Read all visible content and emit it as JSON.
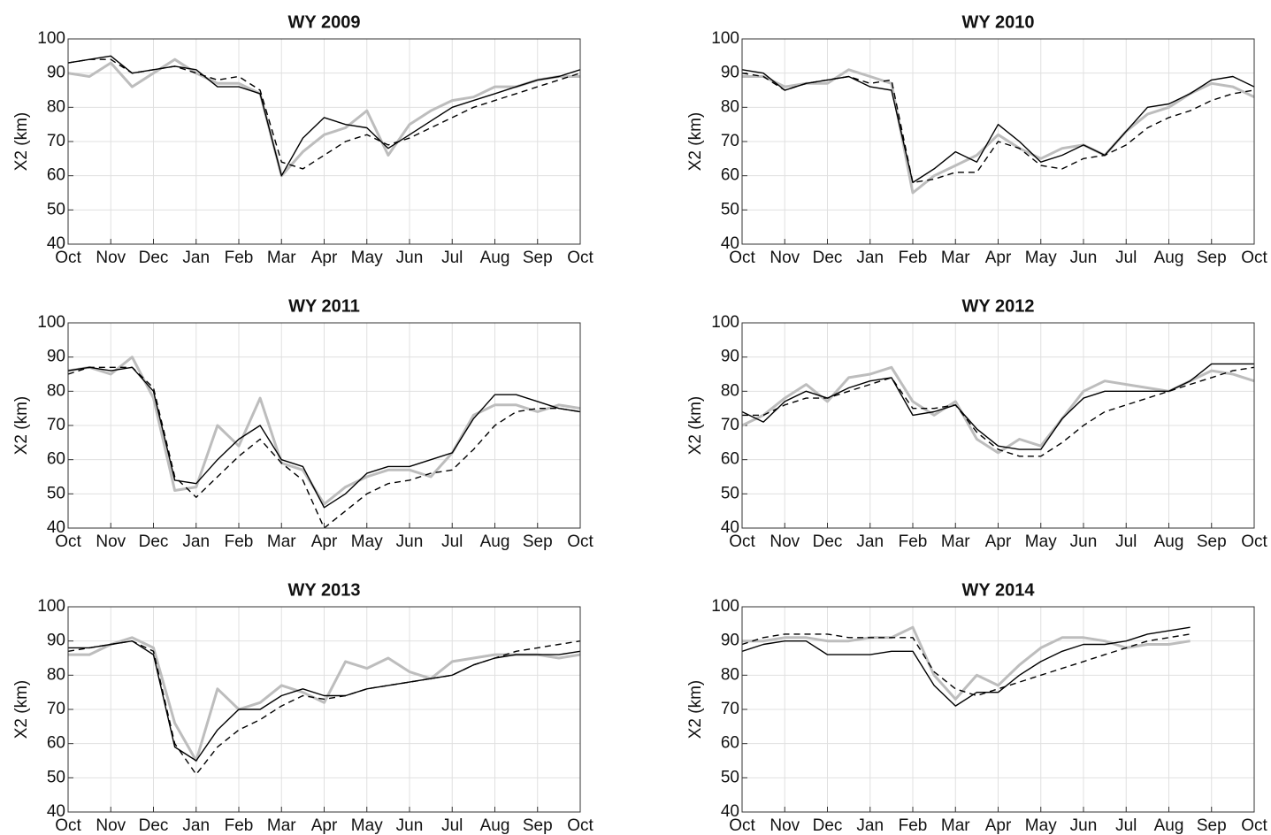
{
  "chart_data": [
    {
      "type": "line",
      "title": "WY 2009",
      "ylabel": "X2 (km)",
      "x": [
        0,
        0.5,
        1,
        1.5,
        2,
        2.5,
        3,
        3.5,
        4,
        4.5,
        5,
        5.5,
        6,
        6.5,
        7,
        7.5,
        8,
        8.5,
        9,
        9.5,
        10,
        10.5,
        11,
        11.5,
        12
      ],
      "xlim": [
        0,
        12
      ],
      "xticks": [
        {
          "value": 0,
          "label": "Oct"
        },
        {
          "value": 1,
          "label": "Nov"
        },
        {
          "value": 2,
          "label": "Dec"
        },
        {
          "value": 3,
          "label": "Jan"
        },
        {
          "value": 4,
          "label": "Feb"
        },
        {
          "value": 5,
          "label": "Mar"
        },
        {
          "value": 6,
          "label": "Apr"
        },
        {
          "value": 7,
          "label": "May"
        },
        {
          "value": 8,
          "label": "Jun"
        },
        {
          "value": 9,
          "label": "Jul"
        },
        {
          "value": 10,
          "label": "Aug"
        },
        {
          "value": 11,
          "label": "Sep"
        },
        {
          "value": 12,
          "label": "Oct"
        }
      ],
      "ylim": [
        40,
        100
      ],
      "yticks": [
        40,
        50,
        60,
        70,
        80,
        90,
        100
      ],
      "grid": true,
      "series": [
        {
          "color": "#bdbdbd",
          "line_style": "solid",
          "values": [
            90,
            89,
            93,
            86,
            90,
            94,
            90,
            87,
            87,
            84,
            60,
            67,
            72,
            74,
            79,
            66,
            75,
            79,
            82,
            83,
            86,
            86,
            88,
            89,
            89
          ]
        },
        {
          "color": "#000000",
          "line_style": "solid",
          "values": [
            93,
            94,
            95,
            90,
            91,
            92,
            91,
            86,
            86,
            84,
            60,
            71,
            77,
            75,
            74,
            68,
            72,
            76,
            80,
            82,
            84,
            86,
            88,
            89,
            91
          ]
        },
        {
          "color": "#000000",
          "line_style": "dashed",
          "values": [
            93,
            94,
            94,
            90,
            91,
            92,
            90,
            88,
            89,
            85,
            64,
            62,
            66,
            70,
            72,
            69,
            71,
            74,
            77,
            80,
            82,
            84,
            86,
            88,
            90
          ]
        }
      ]
    },
    {
      "type": "line",
      "title": "WY 2010",
      "ylabel": "X2 (km)",
      "x": [
        0,
        0.5,
        1,
        1.5,
        2,
        2.5,
        3,
        3.5,
        4,
        4.5,
        5,
        5.5,
        6,
        6.5,
        7,
        7.5,
        8,
        8.5,
        9,
        9.5,
        10,
        10.5,
        11,
        11.5,
        12
      ],
      "xlim": [
        0,
        12
      ],
      "xticks": [
        {
          "value": 0,
          "label": "Oct"
        },
        {
          "value": 1,
          "label": "Nov"
        },
        {
          "value": 2,
          "label": "Dec"
        },
        {
          "value": 3,
          "label": "Jan"
        },
        {
          "value": 4,
          "label": "Feb"
        },
        {
          "value": 5,
          "label": "Mar"
        },
        {
          "value": 6,
          "label": "Apr"
        },
        {
          "value": 7,
          "label": "May"
        },
        {
          "value": 8,
          "label": "Jun"
        },
        {
          "value": 9,
          "label": "Jul"
        },
        {
          "value": 10,
          "label": "Aug"
        },
        {
          "value": 11,
          "label": "Sep"
        },
        {
          "value": 12,
          "label": "Oct"
        }
      ],
      "ylim": [
        40,
        100
      ],
      "yticks": [
        40,
        50,
        60,
        70,
        80,
        90,
        100
      ],
      "grid": true,
      "series": [
        {
          "color": "#bdbdbd",
          "line_style": "solid",
          "values": [
            89,
            89,
            86,
            87,
            87,
            91,
            89,
            87,
            55,
            60,
            63,
            66,
            72,
            68,
            65,
            68,
            69,
            66,
            73,
            78,
            80,
            84,
            87,
            86,
            83
          ]
        },
        {
          "color": "#000000",
          "line_style": "solid",
          "values": [
            91,
            90,
            85,
            87,
            88,
            89,
            86,
            85,
            58,
            62,
            67,
            64,
            75,
            70,
            64,
            66,
            69,
            66,
            73,
            80,
            81,
            84,
            88,
            89,
            86
          ]
        },
        {
          "color": "#000000",
          "line_style": "dashed",
          "values": [
            90,
            89,
            85,
            87,
            88,
            89,
            87,
            88,
            58,
            59,
            61,
            61,
            70,
            68,
            63,
            62,
            65,
            66,
            69,
            74,
            77,
            79,
            82,
            84,
            85
          ]
        }
      ]
    },
    {
      "type": "line",
      "title": "WY 2011",
      "ylabel": "X2 (km)",
      "x": [
        0,
        0.5,
        1,
        1.5,
        2,
        2.5,
        3,
        3.5,
        4,
        4.5,
        5,
        5.5,
        6,
        6.5,
        7,
        7.5,
        8,
        8.5,
        9,
        9.5,
        10,
        10.5,
        11,
        11.5,
        12
      ],
      "xlim": [
        0,
        12
      ],
      "xticks": [
        {
          "value": 0,
          "label": "Oct"
        },
        {
          "value": 1,
          "label": "Nov"
        },
        {
          "value": 2,
          "label": "Dec"
        },
        {
          "value": 3,
          "label": "Jan"
        },
        {
          "value": 4,
          "label": "Feb"
        },
        {
          "value": 5,
          "label": "Mar"
        },
        {
          "value": 6,
          "label": "Apr"
        },
        {
          "value": 7,
          "label": "May"
        },
        {
          "value": 8,
          "label": "Jun"
        },
        {
          "value": 9,
          "label": "Jul"
        },
        {
          "value": 10,
          "label": "Aug"
        },
        {
          "value": 11,
          "label": "Sep"
        },
        {
          "value": 12,
          "label": "Oct"
        }
      ],
      "ylim": [
        40,
        100
      ],
      "yticks": [
        40,
        50,
        60,
        70,
        80,
        90,
        100
      ],
      "grid": true,
      "series": [
        {
          "color": "#bdbdbd",
          "line_style": "solid",
          "values": [
            86,
            87,
            85,
            90,
            78,
            51,
            52,
            70,
            64,
            78,
            59,
            57,
            47,
            52,
            55,
            57,
            57,
            55,
            62,
            73,
            76,
            76,
            74,
            76,
            75
          ]
        },
        {
          "color": "#000000",
          "line_style": "solid",
          "values": [
            86,
            87,
            86,
            87,
            80,
            54,
            53,
            60,
            66,
            70,
            60,
            58,
            46,
            50,
            56,
            58,
            58,
            60,
            62,
            72,
            79,
            79,
            77,
            75,
            74
          ]
        },
        {
          "color": "#000000",
          "line_style": "dashed",
          "values": [
            85,
            87,
            87,
            87,
            81,
            55,
            49,
            55,
            61,
            66,
            59,
            54,
            40,
            45,
            50,
            53,
            54,
            56,
            57,
            63,
            70,
            74,
            75,
            75,
            74
          ]
        }
      ]
    },
    {
      "type": "line",
      "title": "WY 2012",
      "ylabel": "X2 (km)",
      "x": [
        0,
        0.5,
        1,
        1.5,
        2,
        2.5,
        3,
        3.5,
        4,
        4.5,
        5,
        5.5,
        6,
        6.5,
        7,
        7.5,
        8,
        8.5,
        9,
        9.5,
        10,
        10.5,
        11,
        11.5,
        12
      ],
      "xlim": [
        0,
        12
      ],
      "xticks": [
        {
          "value": 0,
          "label": "Oct"
        },
        {
          "value": 1,
          "label": "Nov"
        },
        {
          "value": 2,
          "label": "Dec"
        },
        {
          "value": 3,
          "label": "Jan"
        },
        {
          "value": 4,
          "label": "Feb"
        },
        {
          "value": 5,
          "label": "Mar"
        },
        {
          "value": 6,
          "label": "Apr"
        },
        {
          "value": 7,
          "label": "May"
        },
        {
          "value": 8,
          "label": "Jun"
        },
        {
          "value": 9,
          "label": "Jul"
        },
        {
          "value": 10,
          "label": "Aug"
        },
        {
          "value": 11,
          "label": "Sep"
        },
        {
          "value": 12,
          "label": "Oct"
        }
      ],
      "ylim": [
        40,
        100
      ],
      "yticks": [
        40,
        50,
        60,
        70,
        80,
        90,
        100
      ],
      "grid": true,
      "series": [
        {
          "color": "#bdbdbd",
          "line_style": "solid",
          "values": [
            70,
            73,
            78,
            82,
            77,
            84,
            85,
            87,
            77,
            73,
            77,
            66,
            62,
            66,
            64,
            72,
            80,
            83,
            82,
            81,
            80,
            83,
            86,
            85,
            83
          ]
        },
        {
          "color": "#000000",
          "line_style": "solid",
          "values": [
            74,
            71,
            77,
            80,
            78,
            81,
            83,
            84,
            73,
            74,
            76,
            69,
            64,
            63,
            63,
            72,
            78,
            80,
            80,
            80,
            80,
            83,
            88,
            88,
            88
          ]
        },
        {
          "color": "#000000",
          "line_style": "dashed",
          "values": [
            73,
            73,
            76,
            78,
            78,
            80,
            82,
            84,
            75,
            75,
            76,
            68,
            63,
            61,
            61,
            65,
            70,
            74,
            76,
            78,
            80,
            82,
            84,
            86,
            87
          ]
        }
      ]
    },
    {
      "type": "line",
      "title": "WY 2013",
      "ylabel": "X2 (km)",
      "x": [
        0,
        0.5,
        1,
        1.5,
        2,
        2.5,
        3,
        3.5,
        4,
        4.5,
        5,
        5.5,
        6,
        6.5,
        7,
        7.5,
        8,
        8.5,
        9,
        9.5,
        10,
        10.5,
        11,
        11.5,
        12
      ],
      "xlim": [
        0,
        12
      ],
      "xticks": [
        {
          "value": 0,
          "label": "Oct"
        },
        {
          "value": 1,
          "label": "Nov"
        },
        {
          "value": 2,
          "label": "Dec"
        },
        {
          "value": 3,
          "label": "Jan"
        },
        {
          "value": 4,
          "label": "Feb"
        },
        {
          "value": 5,
          "label": "Mar"
        },
        {
          "value": 6,
          "label": "Apr"
        },
        {
          "value": 7,
          "label": "May"
        },
        {
          "value": 8,
          "label": "Jun"
        },
        {
          "value": 9,
          "label": "Jul"
        },
        {
          "value": 10,
          "label": "Aug"
        },
        {
          "value": 11,
          "label": "Sep"
        },
        {
          "value": 12,
          "label": "Oct"
        }
      ],
      "ylim": [
        40,
        100
      ],
      "yticks": [
        40,
        50,
        60,
        70,
        80,
        90,
        100
      ],
      "grid": true,
      "series": [
        {
          "color": "#bdbdbd",
          "line_style": "solid",
          "values": [
            86,
            86,
            89,
            91,
            88,
            66,
            55,
            76,
            70,
            72,
            77,
            75,
            72,
            84,
            82,
            85,
            81,
            79,
            84,
            85,
            86,
            86,
            86,
            85,
            86
          ]
        },
        {
          "color": "#000000",
          "line_style": "solid",
          "values": [
            88,
            88,
            89,
            90,
            86,
            59,
            55,
            64,
            70,
            70,
            74,
            76,
            74,
            74,
            76,
            77,
            78,
            79,
            80,
            83,
            85,
            86,
            86,
            86,
            87
          ]
        },
        {
          "color": "#000000",
          "line_style": "dashed",
          "values": [
            87,
            88,
            89,
            90,
            87,
            60,
            51,
            59,
            64,
            67,
            71,
            74,
            73,
            74,
            76,
            77,
            78,
            79,
            80,
            83,
            85,
            87,
            88,
            89,
            90
          ]
        }
      ]
    },
    {
      "type": "line",
      "title": "WY 2014",
      "ylabel": "X2 (km)",
      "x": [
        0,
        0.5,
        1,
        1.5,
        2,
        2.5,
        3,
        3.5,
        4,
        4.5,
        5,
        5.5,
        6,
        6.5,
        7,
        7.5,
        8,
        8.5,
        9,
        9.5,
        10,
        10.5,
        11,
        11.5,
        12
      ],
      "xlim": [
        0,
        12
      ],
      "xticks": [
        {
          "value": 0,
          "label": "Oct"
        },
        {
          "value": 1,
          "label": "Nov"
        },
        {
          "value": 2,
          "label": "Dec"
        },
        {
          "value": 3,
          "label": "Jan"
        },
        {
          "value": 4,
          "label": "Feb"
        },
        {
          "value": 5,
          "label": "Mar"
        },
        {
          "value": 6,
          "label": "Apr"
        },
        {
          "value": 7,
          "label": "May"
        },
        {
          "value": 8,
          "label": "Jun"
        },
        {
          "value": 9,
          "label": "Jul"
        },
        {
          "value": 10,
          "label": "Aug"
        },
        {
          "value": 11,
          "label": "Sep"
        },
        {
          "value": 12,
          "label": "Oct"
        }
      ],
      "ylim": [
        40,
        100
      ],
      "yticks": [
        40,
        50,
        60,
        70,
        80,
        90,
        100
      ],
      "grid": true,
      "series": [
        {
          "color": "#bdbdbd",
          "line_style": "solid",
          "values": [
            90,
            90,
            91,
            91,
            90,
            90,
            91,
            91,
            94,
            80,
            73,
            80,
            77,
            83,
            88,
            91,
            91,
            90,
            88,
            89,
            89,
            90,
            null,
            null,
            null
          ]
        },
        {
          "color": "#000000",
          "line_style": "solid",
          "values": [
            87,
            89,
            90,
            90,
            86,
            86,
            86,
            87,
            87,
            77,
            71,
            75,
            75,
            80,
            84,
            87,
            89,
            89,
            90,
            92,
            93,
            94,
            null,
            null,
            null
          ]
        },
        {
          "color": "#000000",
          "line_style": "dashed",
          "values": [
            89,
            91,
            92,
            92,
            92,
            91,
            91,
            91,
            91,
            81,
            76,
            74,
            76,
            78,
            80,
            82,
            84,
            86,
            88,
            90,
            91,
            92,
            null,
            null,
            null
          ]
        }
      ]
    }
  ]
}
